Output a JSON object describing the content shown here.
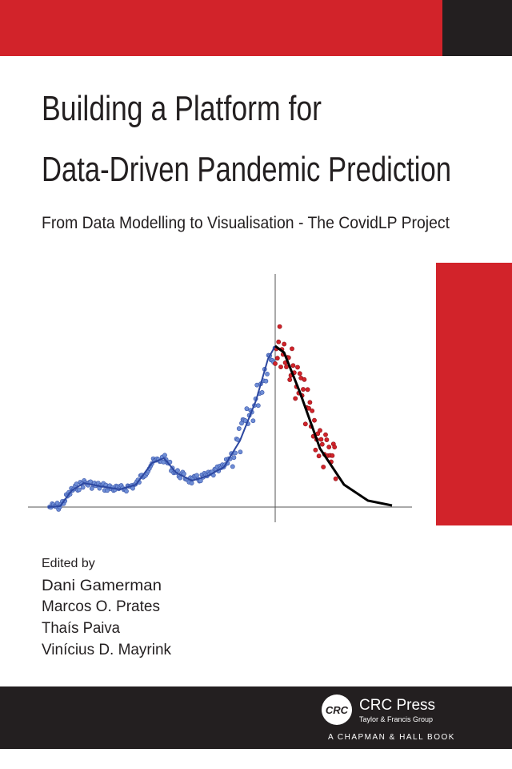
{
  "cover": {
    "title_lines": [
      "Building a Platform for",
      "Data-Driven Pandemic Prediction"
    ],
    "subtitle": "From Data Modelling to Visualisation - The CovidLP Project",
    "edited_by": "Edited by",
    "editors": [
      "Dani Gamerman",
      "Marcos O. Prates",
      "Thaís Paiva",
      "Vinícius D. Mayrink"
    ],
    "publisher": {
      "logo": "CRC",
      "name": "CRC Press",
      "group": "Taylor & Francis Group",
      "series": "A CHAPMAN & HALL BOOK"
    }
  }
}
